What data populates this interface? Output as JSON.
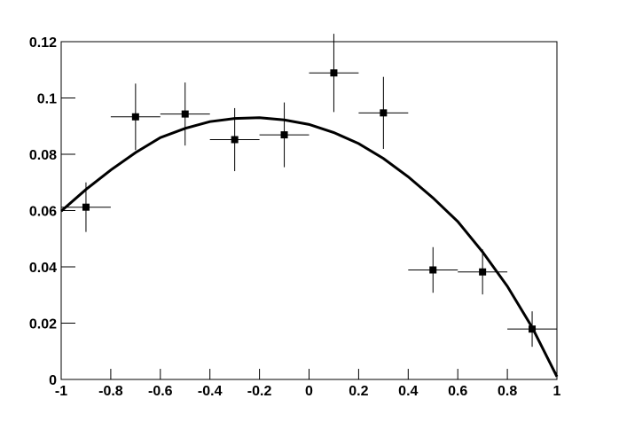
{
  "chart_data": {
    "type": "scatter",
    "series": [
      {
        "color": "#000000",
        "x": [
          -0.9,
          -0.7,
          -0.5,
          -0.3,
          -0.1,
          0.1,
          0.3,
          0.5,
          0.7,
          0.9
        ],
        "xerr": [
          0.1,
          0.1,
          0.1,
          0.1,
          0.1,
          0.1,
          0.1,
          0.1,
          0.1,
          0.1
        ],
        "values": [
          0.0612,
          0.0933,
          0.0943,
          0.0852,
          0.0869,
          0.1089,
          0.0947,
          0.0389,
          0.0382,
          0.0179
        ],
        "yerr": [
          0.0088,
          0.0118,
          0.0112,
          0.0112,
          0.0115,
          0.0139,
          0.0128,
          0.0081,
          0.008,
          0.0063
        ]
      }
    ],
    "curve": {
      "color": "#000000",
      "x": [
        -1,
        -0.9,
        -0.8,
        -0.7,
        -0.6,
        -0.5,
        -0.4,
        -0.3,
        -0.2,
        -0.1,
        0,
        0.1,
        0.2,
        0.3,
        0.4,
        0.5,
        0.6,
        0.7,
        0.8,
        0.9,
        1
      ],
      "values": [
        0.0598,
        0.0675,
        0.0744,
        0.0806,
        0.0859,
        0.0892,
        0.0916,
        0.0927,
        0.093,
        0.0922,
        0.0906,
        0.0877,
        0.0838,
        0.0785,
        0.072,
        0.0645,
        0.0561,
        0.0453,
        0.0331,
        0.0185,
        0.001
      ]
    },
    "xlim": [
      -1,
      1
    ],
    "xticks": [
      -1,
      -0.8,
      -0.6,
      -0.4,
      -0.2,
      0,
      0.2,
      0.4,
      0.6,
      0.8,
      1
    ],
    "ylim": [
      0,
      0.12
    ],
    "yticks": [
      0,
      0.02,
      0.04,
      0.06,
      0.08,
      0.1,
      0.12
    ]
  }
}
